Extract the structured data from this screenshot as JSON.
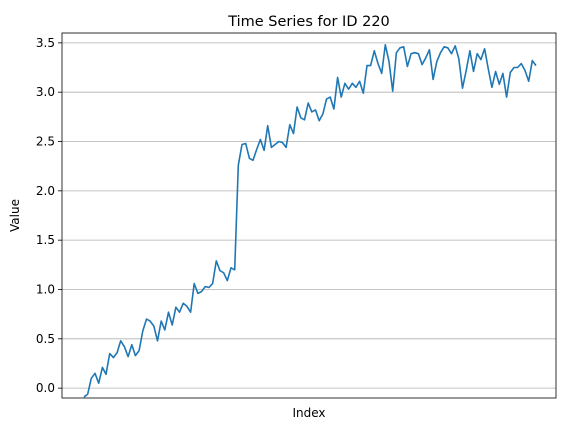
{
  "chart_data": {
    "type": "line",
    "title": "Time Series for ID 220",
    "xlabel": "Index",
    "ylabel": "Value",
    "ylim": [
      -0.1,
      3.6
    ],
    "yticks": [
      0.0,
      0.5,
      1.0,
      1.5,
      2.0,
      2.5,
      3.0,
      3.5
    ],
    "ytick_labels": [
      "0.0",
      "0.5",
      "1.0",
      "1.5",
      "2.0",
      "2.5",
      "3.0",
      "3.5"
    ],
    "xticks_visible": false,
    "grid": "y-only",
    "series": [
      {
        "color": "#1f77b4",
        "x": [
          0,
          1,
          2,
          3,
          4,
          5,
          6,
          7,
          8,
          9,
          10,
          11,
          12,
          13,
          14,
          15,
          16,
          17,
          18,
          19,
          20,
          21,
          22,
          23,
          24,
          25,
          26,
          27,
          28,
          29,
          30,
          31,
          32,
          33,
          34,
          35,
          36,
          37,
          38,
          39,
          40,
          41,
          42,
          43,
          44,
          45,
          46,
          47,
          48,
          49,
          50,
          51,
          52,
          53,
          54,
          55,
          56,
          57,
          58,
          59,
          60,
          61,
          62,
          63,
          64,
          65,
          66,
          67,
          68,
          69,
          70,
          71,
          72,
          73,
          74,
          75,
          76,
          77,
          78,
          79,
          80,
          81,
          82,
          83,
          84,
          85,
          86,
          87,
          88,
          89,
          90,
          91,
          92,
          93,
          94,
          95,
          96,
          97,
          98,
          99,
          100,
          101,
          102,
          103,
          104,
          105,
          106,
          107,
          108,
          109,
          110,
          111,
          112,
          113,
          114,
          115,
          116,
          117,
          118,
          119,
          120,
          121,
          122,
          123
        ],
        "values": [
          -0.09,
          -0.06,
          0.1,
          0.15,
          0.05,
          0.21,
          0.14,
          0.35,
          0.31,
          0.36,
          0.48,
          0.42,
          0.32,
          0.44,
          0.33,
          0.38,
          0.58,
          0.7,
          0.68,
          0.63,
          0.48,
          0.68,
          0.59,
          0.77,
          0.64,
          0.82,
          0.77,
          0.86,
          0.83,
          0.77,
          1.06,
          0.96,
          0.98,
          1.03,
          1.02,
          1.06,
          1.29,
          1.19,
          1.17,
          1.09,
          1.22,
          1.2,
          2.26,
          2.47,
          2.48,
          2.33,
          2.31,
          2.42,
          2.52,
          2.41,
          2.66,
          2.44,
          2.47,
          2.5,
          2.49,
          2.44,
          2.67,
          2.58,
          2.85,
          2.74,
          2.72,
          2.89,
          2.8,
          2.82,
          2.71,
          2.78,
          2.93,
          2.95,
          2.83,
          3.15,
          2.95,
          3.09,
          3.03,
          3.09,
          3.05,
          3.11,
          2.99,
          3.27,
          3.27,
          3.42,
          3.29,
          3.19,
          3.48,
          3.31,
          3.01,
          3.4,
          3.45,
          3.46,
          3.26,
          3.39,
          3.4,
          3.39,
          3.28,
          3.35,
          3.43,
          3.13,
          3.31,
          3.4,
          3.46,
          3.45,
          3.39,
          3.47,
          3.34,
          3.04,
          3.22,
          3.42,
          3.21,
          3.39,
          3.33,
          3.44,
          3.24,
          3.05,
          3.21,
          3.08,
          3.19,
          2.95,
          3.2,
          3.25,
          3.25,
          3.29,
          3.22,
          3.11,
          3.32,
          3.27
        ]
      }
    ]
  }
}
